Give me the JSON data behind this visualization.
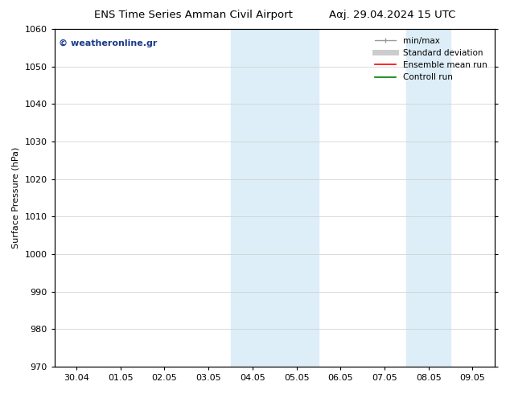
{
  "title_left": "ENS Time Series Amman Civil Airport",
  "title_right": "Ααϳ. 29.04.2024 15 UTC",
  "ylabel": "Surface Pressure (hPa)",
  "xlim_dates": [
    "30.04",
    "01.05",
    "02.05",
    "03.05",
    "04.05",
    "05.05",
    "06.05",
    "07.05",
    "08.05",
    "09.05"
  ],
  "ylim": [
    970,
    1060
  ],
  "yticks": [
    970,
    980,
    990,
    1000,
    1010,
    1020,
    1030,
    1040,
    1050,
    1060
  ],
  "shaded_regions": [
    {
      "xstart": 4.0,
      "xend": 5.0,
      "color": "#ddeef8"
    },
    {
      "xstart": 5.0,
      "xend": 6.0,
      "color": "#ddeef8"
    },
    {
      "xstart": 8.0,
      "xend": 9.0,
      "color": "#ddeef8"
    }
  ],
  "watermark_text": "© weatheronline.gr",
  "watermark_color": "#1a3a8a",
  "legend_items": [
    {
      "label": "min/max",
      "color": "#999999",
      "lw": 1.0,
      "style": "line_with_caps"
    },
    {
      "label": "Standard deviation",
      "color": "#cccccc",
      "lw": 5,
      "style": "thick"
    },
    {
      "label": "Ensemble mean run",
      "color": "red",
      "lw": 1.2,
      "style": "line"
    },
    {
      "label": "Controll run",
      "color": "green",
      "lw": 1.2,
      "style": "line"
    }
  ],
  "bg_color": "#ffffff",
  "plot_bg_color": "#ffffff",
  "grid_color": "#cccccc",
  "border_color": "#000000",
  "title_fontsize": 9.5,
  "axis_fontsize": 8,
  "tick_fontsize": 8,
  "legend_fontsize": 7.5,
  "watermark_fontsize": 8
}
